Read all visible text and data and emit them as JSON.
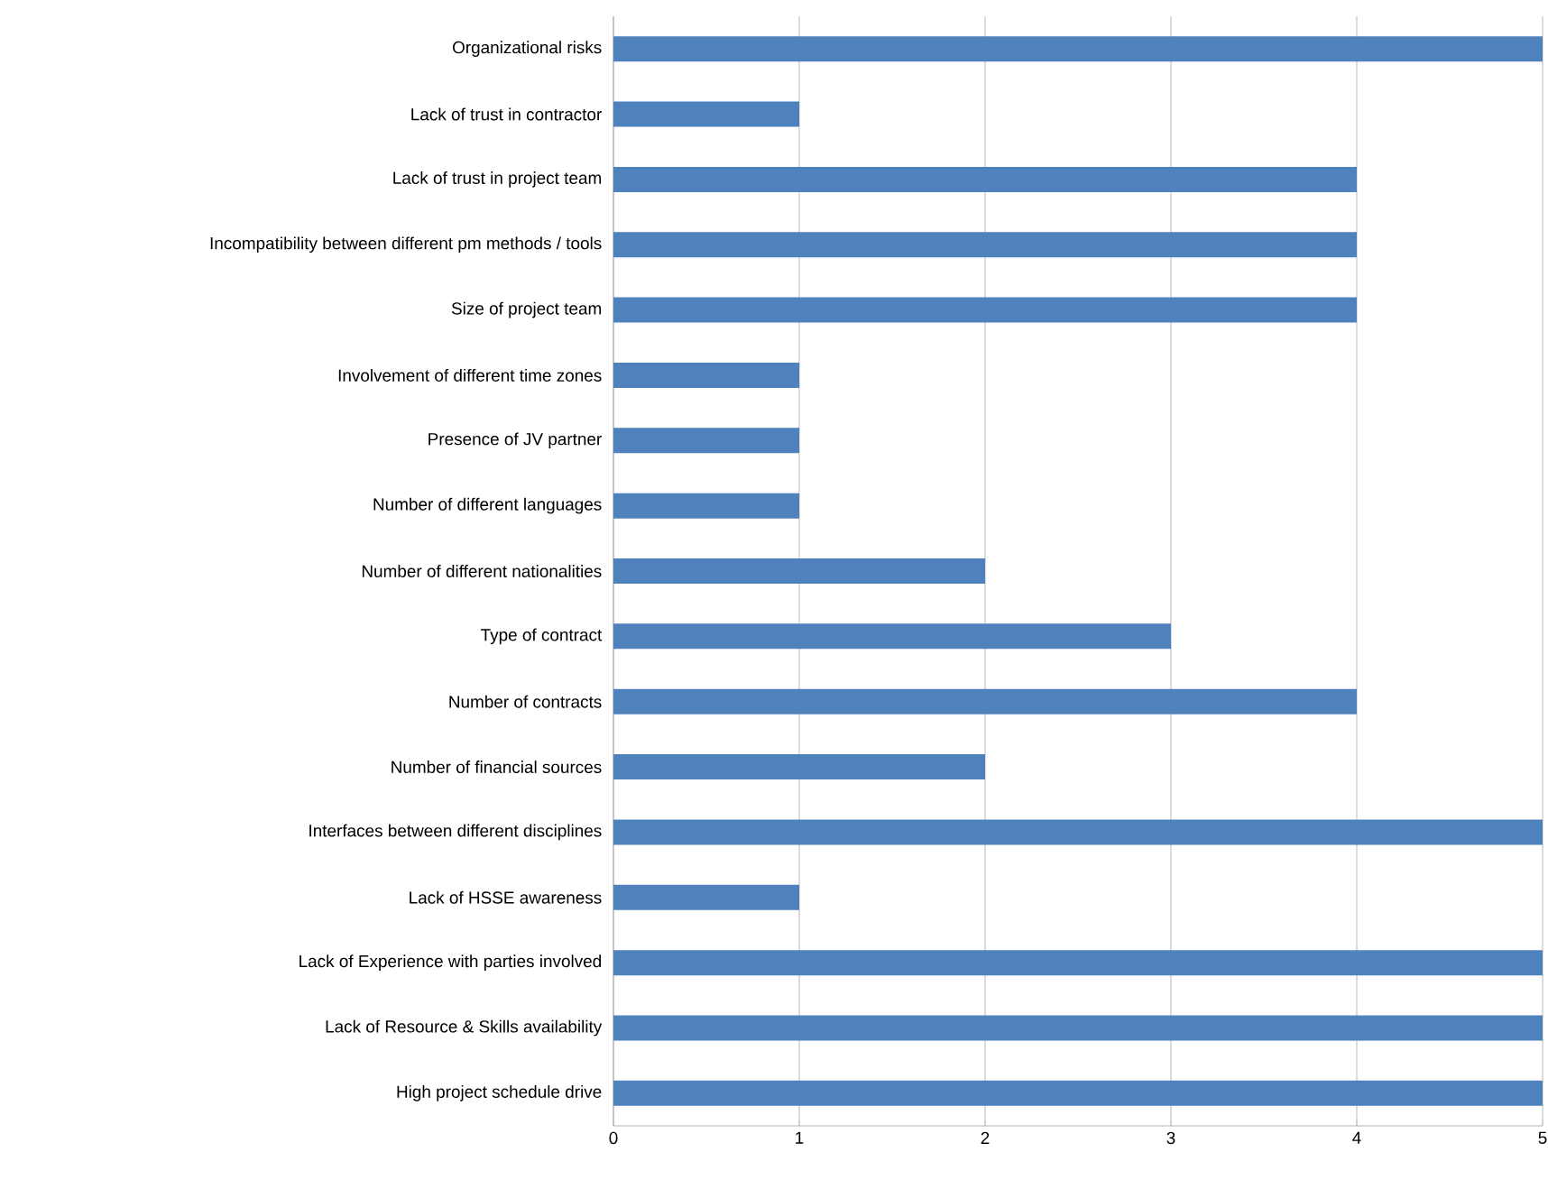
{
  "chart_data": {
    "type": "bar",
    "orientation": "horizontal",
    "categories": [
      "Organizational risks",
      "Lack of trust in contractor",
      "Lack of trust in project team",
      "Incompatibility between different pm methods / tools",
      "Size of project team",
      "Involvement of different time zones",
      "Presence of JV partner",
      "Number of different languages",
      "Number of different nationalities",
      "Type of contract",
      "Number of contracts",
      "Number of financial sources",
      "Interfaces between different disciplines",
      "Lack of HSSE awareness",
      "Lack of Experience with parties involved",
      "Lack of Resource & Skills availability",
      "High project schedule drive"
    ],
    "values": [
      5,
      1,
      4,
      4,
      4,
      1,
      1,
      1,
      2,
      3,
      4,
      2,
      5,
      1,
      5,
      5,
      5
    ],
    "color": "#4f81bd",
    "xlim": [
      0,
      5
    ],
    "xticks": [
      0,
      1,
      2,
      3,
      4,
      5
    ],
    "grid": "x"
  }
}
